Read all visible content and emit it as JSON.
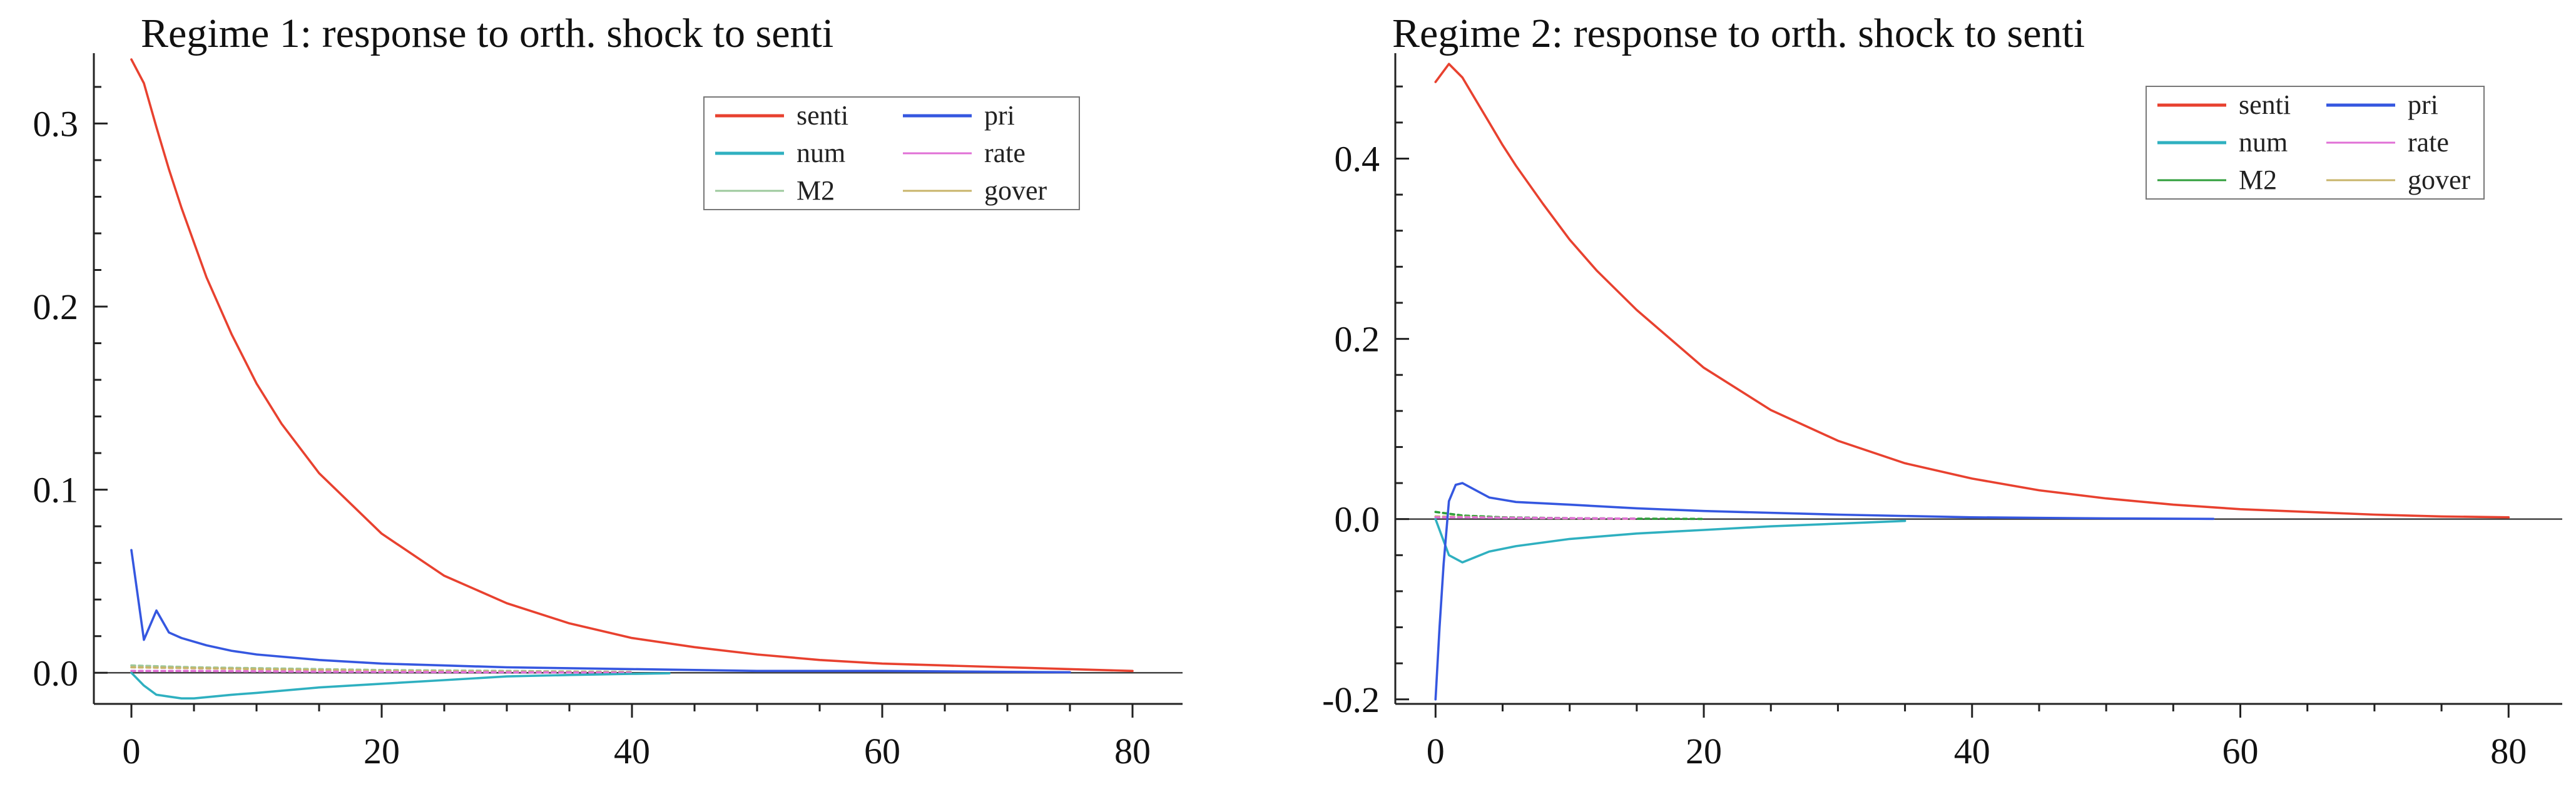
{
  "chart_data": [
    {
      "type": "line",
      "title": "Regime 1: response to orth. shock to senti",
      "xlabel": "",
      "ylabel": "",
      "xlim": [
        -3,
        84
      ],
      "ylim": [
        -0.017,
        0.335
      ],
      "xticks": [
        0,
        20,
        40,
        60,
        80
      ],
      "xtick_labels": [
        "0",
        "20",
        "40",
        "60",
        "80"
      ],
      "yticks": [
        0.0,
        0.1,
        0.2,
        0.3
      ],
      "ytick_labels": [
        "0.0",
        "0.1",
        "0.2",
        "0.3"
      ],
      "legend": {
        "placement": "top-right",
        "entries": [
          "senti",
          "pri",
          "num",
          "rate",
          "M2",
          "gover"
        ]
      },
      "series": [
        {
          "name": "senti",
          "color": "#e8412f",
          "x": [
            0,
            1,
            2,
            3,
            4,
            5,
            6,
            8,
            10,
            12,
            15,
            20,
            25,
            30,
            35,
            40,
            45,
            50,
            55,
            60,
            65,
            70,
            75,
            80
          ],
          "values": [
            0.335,
            0.322,
            0.298,
            0.275,
            0.254,
            0.235,
            0.216,
            0.185,
            0.158,
            0.136,
            0.109,
            0.076,
            0.053,
            0.038,
            0.027,
            0.019,
            0.014,
            0.01,
            0.007,
            0.005,
            0.004,
            0.003,
            0.002,
            0.001
          ]
        },
        {
          "name": "pri",
          "color": "#3557e0",
          "x": [
            0,
            1,
            2,
            3,
            4,
            6,
            8,
            10,
            15,
            20,
            25,
            30,
            40,
            50,
            60,
            70,
            75
          ],
          "values": [
            0.067,
            0.018,
            0.034,
            0.022,
            0.019,
            0.015,
            0.012,
            0.01,
            0.007,
            0.005,
            0.004,
            0.003,
            0.002,
            0.001,
            0.001,
            0.0005,
            0.0003
          ]
        },
        {
          "name": "num",
          "color": "#2fb0c0",
          "x": [
            0,
            1,
            2,
            3,
            4,
            5,
            8,
            10,
            15,
            20,
            25,
            30,
            35,
            40,
            43
          ],
          "values": [
            0.0,
            -0.007,
            -0.012,
            -0.013,
            -0.014,
            -0.014,
            -0.012,
            -0.011,
            -0.008,
            -0.006,
            -0.004,
            -0.002,
            -0.0012,
            -0.0006,
            -0.0003
          ]
        },
        {
          "name": "rate",
          "color": "#e070d6",
          "x": [
            0,
            5,
            10,
            15,
            20,
            30,
            40
          ],
          "values": [
            0.001,
            0.001,
            0.0008,
            0.0006,
            0.0005,
            0.0003,
            0.0001
          ]
        },
        {
          "name": "M2",
          "color": "#9cc99c",
          "x": [
            0,
            5,
            10,
            15,
            20,
            30,
            40
          ],
          "values": [
            0.004,
            0.003,
            0.0025,
            0.002,
            0.0015,
            0.001,
            0.0005
          ]
        },
        {
          "name": "gover",
          "color": "#c8b46a",
          "x": [
            0,
            5,
            10,
            15,
            20,
            30,
            40
          ],
          "values": [
            0.003,
            0.0025,
            0.002,
            0.0015,
            0.001,
            0.0006,
            0.0003
          ]
        }
      ]
    },
    {
      "type": "line",
      "title": "Regime 2: response to orth. shock to senti",
      "xlabel": "",
      "ylabel": "",
      "xlim": [
        -3,
        84
      ],
      "ylim": [
        -0.205,
        0.51
      ],
      "xticks": [
        0,
        20,
        40,
        60,
        80
      ],
      "xtick_labels": [
        "0",
        "20",
        "40",
        "60",
        "80"
      ],
      "yticks": [
        -0.2,
        0.0,
        0.2,
        0.4
      ],
      "ytick_labels": [
        "-0.2",
        "0.0",
        "0.2",
        "0.4"
      ],
      "legend": {
        "placement": "top-right",
        "entries": [
          "senti",
          "pri",
          "num",
          "rate",
          "M2",
          "gover"
        ]
      },
      "series": [
        {
          "name": "senti",
          "color": "#e8412f",
          "x": [
            0,
            0.5,
            1,
            2,
            3,
            4,
            5,
            6,
            8,
            10,
            12,
            15,
            20,
            25,
            30,
            35,
            40,
            45,
            50,
            55,
            60,
            65,
            70,
            75,
            80
          ],
          "values": [
            0.485,
            0.495,
            0.505,
            0.49,
            0.465,
            0.44,
            0.415,
            0.392,
            0.35,
            0.31,
            0.276,
            0.232,
            0.168,
            0.121,
            0.087,
            0.062,
            0.045,
            0.032,
            0.023,
            0.016,
            0.011,
            0.008,
            0.005,
            0.003,
            0.002
          ]
        },
        {
          "name": "pri",
          "color": "#3557e0",
          "x": [
            0,
            0.3,
            0.6,
            1,
            1.5,
            2,
            3,
            4,
            6,
            10,
            15,
            20,
            30,
            40,
            50,
            58
          ],
          "values": [
            -0.2,
            -0.12,
            -0.05,
            0.02,
            0.038,
            0.04,
            0.032,
            0.024,
            0.019,
            0.016,
            0.012,
            0.009,
            0.005,
            0.002,
            0.0008,
            0.0003
          ]
        },
        {
          "name": "num",
          "color": "#2fb0c0",
          "x": [
            0,
            0.5,
            1,
            2,
            3,
            4,
            6,
            8,
            10,
            15,
            20,
            25,
            30,
            35
          ],
          "values": [
            0.0,
            -0.02,
            -0.04,
            -0.048,
            -0.042,
            -0.036,
            -0.03,
            -0.026,
            -0.022,
            -0.016,
            -0.012,
            -0.008,
            -0.005,
            -0.002
          ]
        },
        {
          "name": "rate",
          "color": "#e070d6",
          "x": [
            0,
            2,
            5,
            10,
            15
          ],
          "values": [
            0.002,
            0.002,
            0.0015,
            0.001,
            0.0005
          ]
        },
        {
          "name": "M2",
          "color": "#2e9e3a",
          "x": [
            0,
            2,
            5,
            10,
            15,
            20
          ],
          "values": [
            0.008,
            0.004,
            0.002,
            0.001,
            0.0005,
            0.0002
          ]
        },
        {
          "name": "gover",
          "color": "#c8b46a",
          "x": [
            0,
            2,
            5,
            10,
            15
          ],
          "values": [
            0.003,
            0.0025,
            0.0015,
            0.0008,
            0.0003
          ]
        }
      ]
    }
  ]
}
